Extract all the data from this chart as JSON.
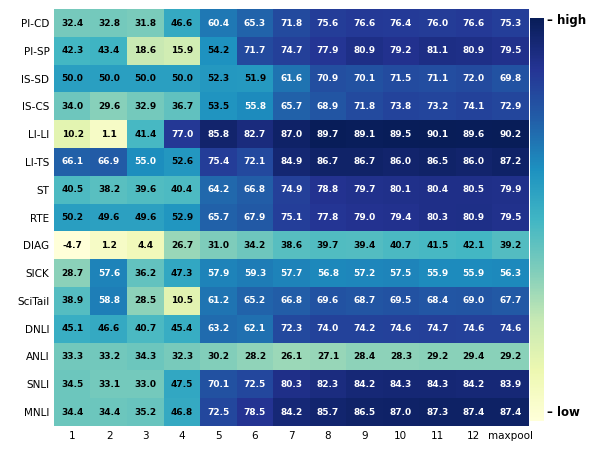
{
  "row_labels": [
    "PI-CD",
    "PI-SP",
    "IS-SD",
    "IS-CS",
    "LI-LI",
    "LI-TS",
    "ST",
    "RTE",
    "DIAG",
    "SICK",
    "SciTail",
    "DNLI",
    "ANLI",
    "SNLI",
    "MNLI"
  ],
  "col_labels": [
    "1",
    "2",
    "3",
    "4",
    "5",
    "6",
    "7",
    "8",
    "9",
    "10",
    "11",
    "12",
    "maxpool"
  ],
  "data": [
    [
      32.4,
      32.8,
      31.8,
      46.6,
      60.4,
      65.3,
      71.8,
      75.6,
      76.6,
      76.4,
      76.0,
      76.6,
      75.3
    ],
    [
      42.3,
      43.4,
      18.6,
      15.9,
      54.2,
      71.7,
      74.7,
      77.9,
      80.9,
      79.2,
      81.1,
      80.9,
      79.5
    ],
    [
      50.0,
      50.0,
      50.0,
      50.0,
      52.3,
      51.9,
      61.6,
      70.9,
      70.1,
      71.5,
      71.1,
      72.0,
      69.8
    ],
    [
      34.0,
      29.6,
      32.9,
      36.7,
      53.5,
      55.8,
      65.7,
      68.9,
      71.8,
      73.8,
      73.2,
      74.1,
      72.9
    ],
    [
      10.2,
      1.1,
      41.4,
      77.0,
      85.8,
      82.7,
      87.0,
      89.7,
      89.1,
      89.5,
      90.1,
      89.6,
      90.2
    ],
    [
      66.1,
      66.9,
      55.0,
      52.6,
      75.4,
      72.1,
      84.9,
      86.7,
      86.7,
      86.0,
      86.5,
      86.0,
      87.2
    ],
    [
      40.5,
      38.2,
      39.6,
      40.4,
      64.2,
      66.8,
      74.9,
      78.8,
      79.7,
      80.1,
      80.4,
      80.5,
      79.9
    ],
    [
      50.2,
      49.6,
      49.6,
      52.9,
      65.7,
      67.9,
      75.1,
      77.8,
      79.0,
      79.4,
      80.3,
      80.9,
      79.5
    ],
    [
      -4.7,
      1.2,
      4.4,
      26.7,
      31.0,
      34.2,
      38.6,
      39.7,
      39.4,
      40.7,
      41.5,
      42.1,
      39.2
    ],
    [
      28.7,
      57.6,
      36.2,
      47.3,
      57.9,
      59.3,
      57.7,
      56.8,
      57.2,
      57.5,
      55.9,
      55.9,
      56.3
    ],
    [
      38.9,
      58.8,
      28.5,
      10.5,
      61.2,
      65.2,
      66.8,
      69.6,
      68.7,
      69.5,
      68.4,
      69.0,
      67.7
    ],
    [
      45.1,
      46.6,
      40.7,
      45.4,
      63.2,
      62.1,
      72.3,
      74.0,
      74.2,
      74.6,
      74.7,
      74.6,
      74.6
    ],
    [
      33.3,
      33.2,
      34.3,
      32.3,
      30.2,
      28.2,
      26.1,
      27.1,
      28.4,
      28.3,
      29.2,
      29.4,
      29.2
    ],
    [
      34.5,
      33.1,
      33.0,
      47.5,
      70.1,
      72.5,
      80.3,
      82.3,
      84.2,
      84.3,
      84.3,
      84.2,
      83.9
    ],
    [
      34.4,
      34.4,
      35.2,
      46.8,
      72.5,
      78.5,
      84.2,
      85.7,
      86.5,
      87.0,
      87.3,
      87.4,
      87.4
    ]
  ],
  "vmin": -4.7,
  "vmax": 90.2,
  "fontsize_cell": 6.5,
  "fontsize_axis": 7.5,
  "fontsize_legend": 8.5
}
